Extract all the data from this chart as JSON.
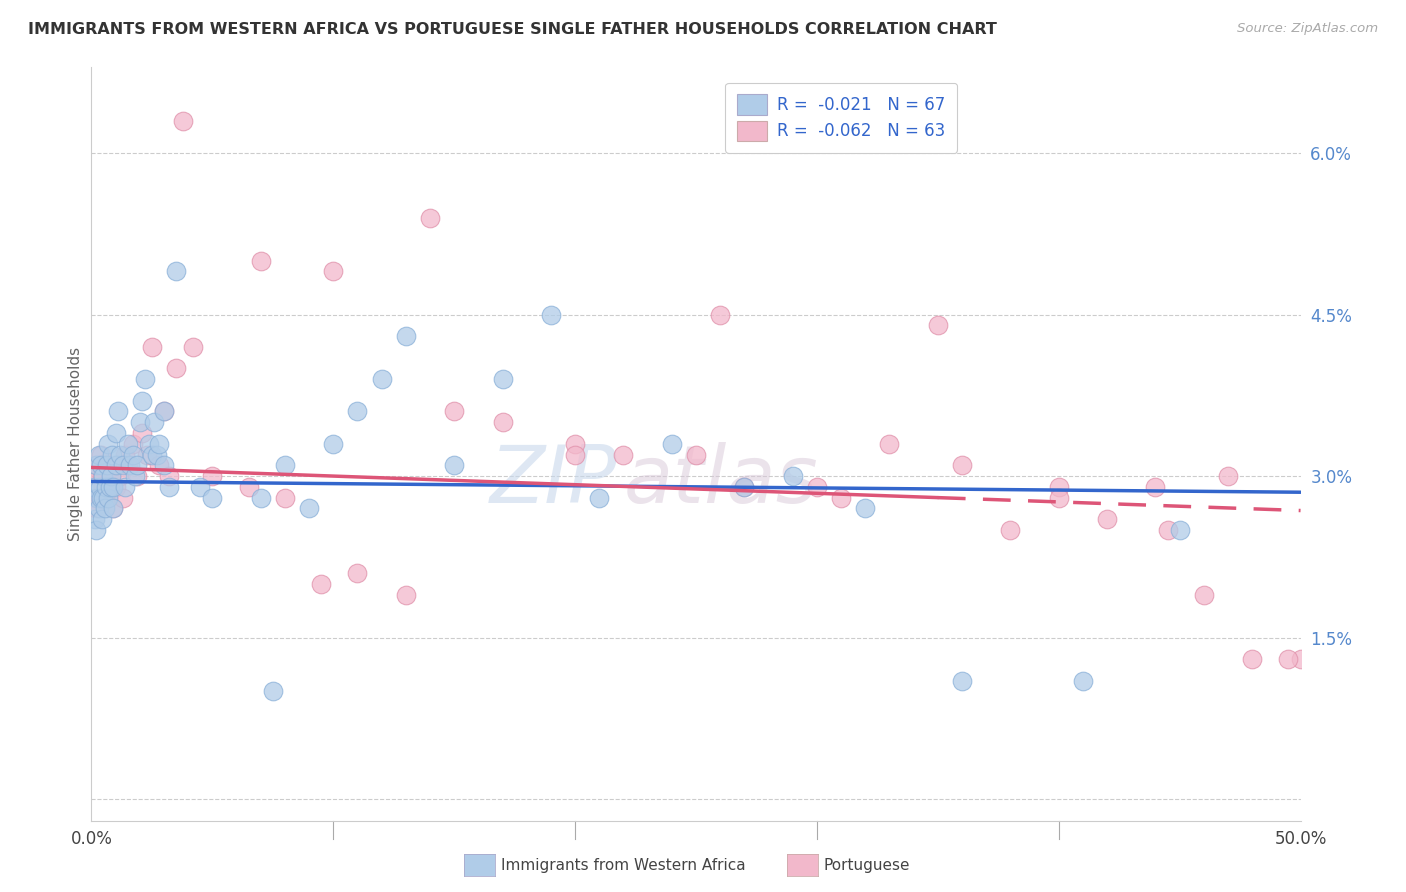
{
  "title": "IMMIGRANTS FROM WESTERN AFRICA VS PORTUGUESE SINGLE FATHER HOUSEHOLDS CORRELATION CHART",
  "source": "Source: ZipAtlas.com",
  "ylabel": "Single Father Households",
  "right_ytick_vals": [
    0.0,
    1.5,
    3.0,
    4.5,
    6.0
  ],
  "right_ytick_labels": [
    "",
    "1.5%",
    "3.0%",
    "4.5%",
    "6.0%"
  ],
  "xmin": 0.0,
  "xmax": 50.0,
  "ymin": -0.2,
  "ymax": 6.8,
  "blue_R": -0.021,
  "blue_N": 67,
  "pink_R": -0.062,
  "pink_N": 63,
  "blue_color": "#b0cce8",
  "pink_color": "#f2b8cb",
  "blue_line_color": "#3366cc",
  "pink_line_color": "#dd5577",
  "watermark_zip": "ZIP",
  "watermark_atlas": "atlas",
  "legend_label_blue": "Immigrants from Western Africa",
  "legend_label_pink": "Portuguese",
  "blue_x": [
    0.1,
    0.15,
    0.2,
    0.2,
    0.25,
    0.3,
    0.3,
    0.35,
    0.4,
    0.4,
    0.45,
    0.5,
    0.5,
    0.55,
    0.6,
    0.65,
    0.7,
    0.7,
    0.75,
    0.8,
    0.85,
    0.9,
    0.9,
    1.0,
    1.0,
    1.1,
    1.2,
    1.3,
    1.4,
    1.5,
    1.6,
    1.7,
    1.8,
    1.9,
    2.0,
    2.1,
    2.2,
    2.4,
    2.5,
    2.6,
    2.7,
    2.8,
    3.0,
    3.0,
    3.2,
    3.5,
    4.5,
    5.0,
    7.0,
    7.5,
    8.0,
    9.0,
    10.0,
    11.0,
    12.0,
    13.0,
    15.0,
    17.0,
    19.0,
    21.0,
    24.0,
    27.0,
    29.0,
    32.0,
    36.0,
    41.0,
    45.0
  ],
  "blue_y": [
    2.9,
    2.6,
    3.1,
    2.5,
    2.8,
    2.7,
    3.2,
    2.9,
    2.8,
    3.1,
    2.6,
    2.8,
    3.0,
    2.7,
    2.9,
    3.1,
    2.8,
    3.3,
    2.9,
    3.0,
    3.2,
    2.7,
    2.9,
    3.4,
    3.1,
    3.6,
    3.2,
    3.1,
    2.9,
    3.3,
    3.1,
    3.2,
    3.0,
    3.1,
    3.5,
    3.7,
    3.9,
    3.3,
    3.2,
    3.5,
    3.2,
    3.3,
    3.1,
    3.6,
    2.9,
    4.9,
    2.9,
    2.8,
    2.8,
    1.0,
    3.1,
    2.7,
    3.3,
    3.6,
    3.9,
    4.3,
    3.1,
    3.9,
    4.5,
    2.8,
    3.3,
    2.9,
    3.0,
    2.7,
    1.1,
    1.1,
    2.5
  ],
  "pink_x": [
    0.1,
    0.15,
    0.2,
    0.25,
    0.3,
    0.35,
    0.4,
    0.45,
    0.5,
    0.6,
    0.7,
    0.8,
    0.9,
    1.0,
    1.1,
    1.2,
    1.3,
    1.4,
    1.5,
    1.7,
    1.9,
    2.1,
    2.3,
    2.5,
    2.8,
    3.0,
    3.2,
    3.5,
    3.8,
    4.2,
    5.0,
    6.5,
    8.0,
    9.5,
    11.0,
    13.0,
    15.0,
    17.0,
    20.0,
    22.0,
    25.0,
    27.0,
    30.0,
    33.0,
    36.0,
    38.0,
    40.0,
    42.0,
    44.0,
    46.0,
    48.0,
    50.0,
    7.0,
    10.0,
    14.0,
    20.0,
    26.0,
    31.0,
    35.0,
    40.0,
    44.5,
    47.0,
    49.5
  ],
  "pink_y": [
    2.8,
    3.0,
    2.7,
    3.1,
    2.9,
    2.8,
    3.2,
    3.0,
    2.9,
    3.1,
    2.8,
    3.0,
    2.7,
    2.9,
    3.1,
    3.0,
    2.8,
    3.2,
    3.1,
    3.3,
    3.0,
    3.4,
    3.2,
    4.2,
    3.1,
    3.6,
    3.0,
    4.0,
    6.3,
    4.2,
    3.0,
    2.9,
    2.8,
    2.0,
    2.1,
    1.9,
    3.6,
    3.5,
    3.3,
    3.2,
    3.2,
    2.9,
    2.9,
    3.3,
    3.1,
    2.5,
    2.9,
    2.6,
    2.9,
    1.9,
    1.3,
    1.3,
    5.0,
    4.9,
    5.4,
    3.2,
    4.5,
    2.8,
    4.4,
    2.8,
    2.5,
    3.0,
    1.3
  ]
}
